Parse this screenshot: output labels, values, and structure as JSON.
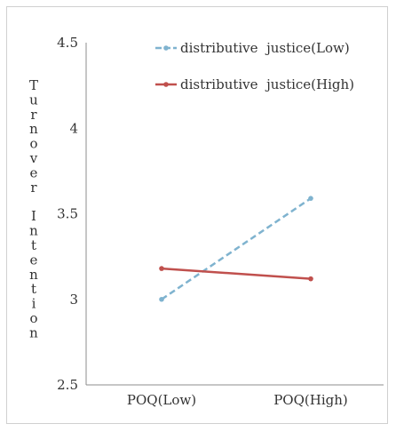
{
  "chart_data": {
    "type": "line",
    "categories": [
      "POQ(Low)",
      "POQ(High)"
    ],
    "series": [
      {
        "name": "distributive  justice(Low)",
        "values": [
          3.0,
          3.59
        ],
        "color": "#7fb3cf",
        "dash": "dashed"
      },
      {
        "name": "distributive  justice(High)",
        "values": [
          3.18,
          3.12
        ],
        "color": "#c0504d",
        "dash": "solid"
      }
    ],
    "ylabel": "Turnover Intention",
    "ylim": [
      2.5,
      4.5
    ],
    "yticks": [
      "2.5",
      "3",
      "3.5",
      "4",
      "4.5"
    ],
    "grid": false,
    "legend_position": "top-right"
  }
}
